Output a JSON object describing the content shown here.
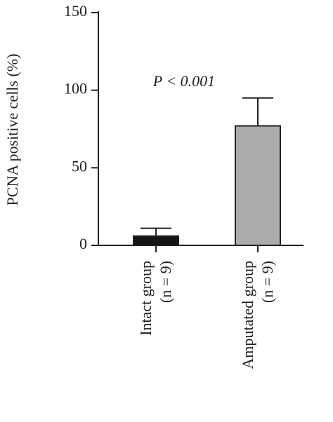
{
  "chart_data": {
    "type": "bar",
    "y_label": "PCNA positive cells (%)",
    "annotation": "P < 0.001",
    "categories": [
      "Intact group",
      "Amputated group"
    ],
    "group_sizes": [
      "(n = 9)",
      "(n = 9)"
    ],
    "values": [
      6,
      77
    ],
    "errors": [
      5,
      18
    ],
    "colors": [
      "#141414",
      "#ababab"
    ],
    "ylim": [
      0,
      150
    ],
    "yticks": [
      0,
      50,
      100,
      150
    ]
  }
}
